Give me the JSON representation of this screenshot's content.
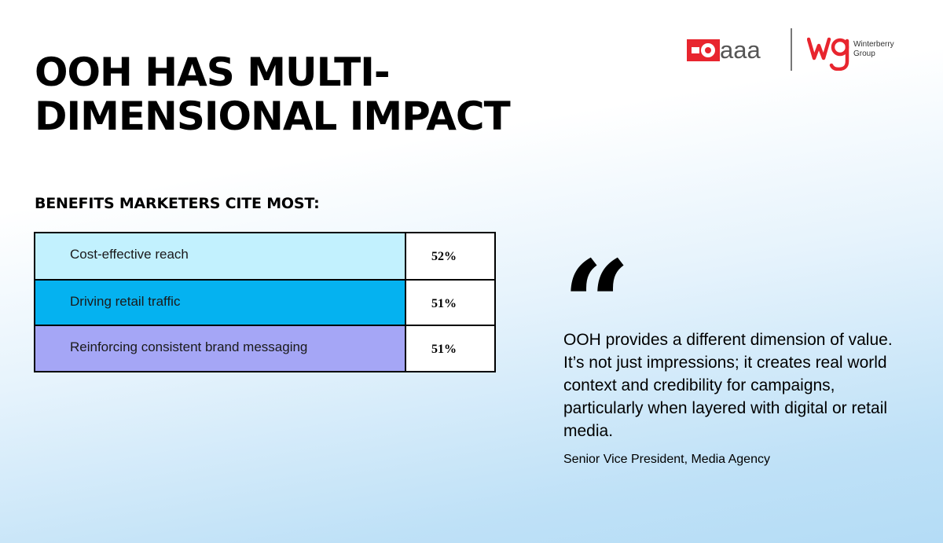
{
  "title": {
    "line1": "OOH HAS MULTI-",
    "line2": "DIMENSIONAL IMPACT"
  },
  "subtitle": "BENEFITS MARKETERS CITE MOST:",
  "benefits": [
    {
      "label": "Cost-effective reach",
      "value": "52%",
      "color": "#c2f1fe"
    },
    {
      "label": "Driving retail traffic",
      "value": "51%",
      "color": "#05b2f0"
    },
    {
      "label": "Reinforcing consistent brand messaging",
      "value": "51%",
      "color": "#a5a6f6"
    }
  ],
  "quote": {
    "mark": "“",
    "text": "OOH provides a different dimension of value. It’s not just impressions; it creates real world context and credibility for campaigns, particularly when layered with digital or retail media.",
    "attribution": "Senior Vice President, Media Agency"
  },
  "logos": {
    "oaaa_text": "aaa",
    "winterberry_line1": "Winterberry",
    "winterberry_line2": "Group",
    "brand_red": "#e8252e",
    "icons": [
      "oaaa-logo-icon",
      "wg-logo-icon"
    ]
  }
}
